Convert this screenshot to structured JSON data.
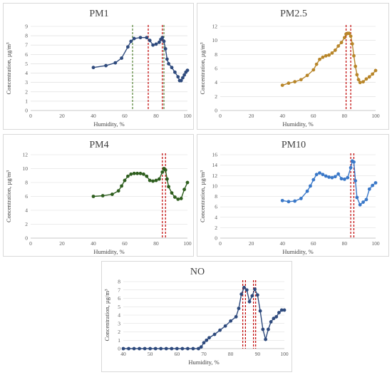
{
  "chart_data": [
    {
      "type": "scatter",
      "title": "PM1",
      "xlabel": "Humidity, %",
      "ylabel": "Concentration, µg/m³",
      "xlim": [
        0,
        100
      ],
      "ylim": [
        0,
        9
      ],
      "xticks": [
        0,
        20,
        40,
        60,
        80,
        100
      ],
      "yticks": [
        0,
        1,
        2,
        3,
        4,
        5,
        6,
        7,
        8,
        9
      ],
      "color": "#2e4a7d",
      "vlines": [
        {
          "x": 65,
          "color": "#548235"
        },
        {
          "x": 75,
          "color": "#c00000"
        },
        {
          "x": 84,
          "color": "#c00000"
        },
        {
          "x": 85,
          "color": "#548235"
        }
      ],
      "series": [
        {
          "x": [
            40,
            48,
            54,
            58,
            62,
            64,
            66,
            70,
            74,
            76,
            78,
            80,
            82,
            83,
            84,
            85,
            86,
            87,
            88,
            90,
            92,
            94,
            95,
            96,
            97,
            98,
            99,
            100
          ],
          "y": [
            4.6,
            4.8,
            5.1,
            5.6,
            6.8,
            7.4,
            7.7,
            7.8,
            7.8,
            7.5,
            7.0,
            7.1,
            7.3,
            7.6,
            7.8,
            7.4,
            6.6,
            5.5,
            5.0,
            4.6,
            4.1,
            3.6,
            3.2,
            3.2,
            3.5,
            3.8,
            4.1,
            4.3
          ]
        }
      ]
    },
    {
      "type": "scatter",
      "title": "PM2.5",
      "xlabel": "Humidity, %",
      "ylabel": "Concentration, µg/m³",
      "xlim": [
        0,
        100
      ],
      "ylim": [
        0,
        12
      ],
      "xticks": [
        0,
        20,
        40,
        60,
        80,
        100
      ],
      "yticks": [
        0,
        2,
        4,
        6,
        8,
        10,
        12
      ],
      "color": "#b8862a",
      "vlines": [
        {
          "x": 81,
          "color": "#c00000"
        },
        {
          "x": 84,
          "color": "#c00000"
        }
      ],
      "series": [
        {
          "x": [
            40,
            44,
            48,
            52,
            56,
            60,
            62,
            64,
            66,
            68,
            70,
            72,
            74,
            76,
            78,
            80,
            81,
            82,
            83,
            84,
            85,
            86,
            87,
            88,
            89,
            90,
            92,
            94,
            96,
            98,
            100
          ],
          "y": [
            3.6,
            3.9,
            4.1,
            4.4,
            5.0,
            5.8,
            6.6,
            7.3,
            7.6,
            7.8,
            7.9,
            8.2,
            8.6,
            9.2,
            9.7,
            10.4,
            10.9,
            11.0,
            11.0,
            10.6,
            9.5,
            7.8,
            6.3,
            5.1,
            4.4,
            4.0,
            4.1,
            4.5,
            4.8,
            5.2,
            5.7
          ]
        }
      ]
    },
    {
      "type": "scatter",
      "title": "PM4",
      "xlabel": "Humidity, %",
      "ylabel": "Concentration, µg/m³",
      "xlim": [
        0,
        100
      ],
      "ylim": [
        0,
        12
      ],
      "xticks": [
        0,
        20,
        40,
        60,
        80,
        100
      ],
      "yticks": [
        0,
        2,
        4,
        6,
        8,
        10,
        12
      ],
      "color": "#2e5e1e",
      "vlines": [
        {
          "x": 84,
          "color": "#c00000"
        },
        {
          "x": 86,
          "color": "#c00000"
        }
      ],
      "series": [
        {
          "x": [
            40,
            46,
            52,
            56,
            58,
            60,
            62,
            64,
            66,
            68,
            70,
            72,
            74,
            76,
            78,
            80,
            82,
            84,
            85,
            86,
            87,
            88,
            90,
            92,
            94,
            96,
            98,
            100
          ],
          "y": [
            6.0,
            6.1,
            6.3,
            6.8,
            7.5,
            8.3,
            8.9,
            9.2,
            9.3,
            9.3,
            9.3,
            9.2,
            8.9,
            8.3,
            8.2,
            8.3,
            8.5,
            9.5,
            10.0,
            9.8,
            8.5,
            7.4,
            6.5,
            5.9,
            5.6,
            5.7,
            7.0,
            8.0
          ]
        }
      ]
    },
    {
      "type": "scatter",
      "title": "PM10",
      "xlabel": "Humidity, %",
      "ylabel": "Concentration, µg/m³",
      "xlim": [
        0,
        100
      ],
      "ylim": [
        0,
        16
      ],
      "xticks": [
        0,
        20,
        40,
        60,
        80,
        100
      ],
      "yticks": [
        0,
        2,
        4,
        6,
        8,
        10,
        12,
        14,
        16
      ],
      "color": "#3a78c8",
      "vlines": [
        {
          "x": 84,
          "color": "#c00000"
        },
        {
          "x": 86,
          "color": "#c00000"
        }
      ],
      "series": [
        {
          "x": [
            40,
            44,
            48,
            52,
            56,
            58,
            60,
            62,
            64,
            66,
            68,
            70,
            72,
            74,
            76,
            78,
            80,
            82,
            84,
            85,
            86,
            87,
            88,
            90,
            92,
            94,
            96,
            98,
            100
          ],
          "y": [
            7.2,
            7.0,
            7.1,
            7.6,
            9.0,
            10.0,
            11.2,
            12.2,
            12.5,
            12.2,
            11.9,
            11.7,
            11.6,
            11.8,
            12.3,
            11.4,
            11.3,
            11.6,
            13.5,
            14.8,
            14.6,
            11.0,
            7.8,
            6.4,
            6.9,
            7.4,
            9.4,
            10.1,
            10.6
          ]
        }
      ]
    },
    {
      "type": "scatter",
      "title": "NO",
      "xlabel": "Humidity, %",
      "ylabel": "Concentration, µg/m³",
      "xlim": [
        40,
        100
      ],
      "ylim": [
        0,
        8
      ],
      "xticks": [
        40,
        50,
        60,
        70,
        80,
        90,
        100
      ],
      "yticks": [
        0,
        1,
        2,
        3,
        4,
        5,
        6,
        7,
        8
      ],
      "color": "#2e4a7d",
      "vlines": [
        {
          "x": 84.5,
          "color": "#c00000"
        },
        {
          "x": 85.5,
          "color": "#c00000"
        },
        {
          "x": 88.5,
          "color": "#c00000"
        },
        {
          "x": 89.3,
          "color": "#c00000"
        }
      ],
      "series": [
        {
          "x": [
            40,
            42,
            44,
            46,
            48,
            50,
            52,
            54,
            56,
            58,
            60,
            62,
            64,
            66,
            68,
            69,
            70,
            71,
            72,
            74,
            76,
            78,
            80,
            82,
            83,
            84,
            85,
            86,
            87,
            88,
            89,
            90,
            91,
            92,
            93,
            94,
            95,
            96,
            97,
            98,
            99,
            100
          ],
          "y": [
            0,
            0,
            0,
            0,
            0,
            0,
            0,
            0,
            0,
            0,
            0,
            0,
            0,
            0,
            0,
            0.2,
            0.7,
            1.0,
            1.3,
            1.7,
            2.2,
            2.7,
            3.3,
            3.8,
            4.8,
            6.5,
            7.3,
            7.0,
            5.6,
            6.3,
            7.1,
            6.4,
            4.5,
            2.3,
            1.1,
            2.3,
            3.2,
            3.6,
            3.8,
            4.3,
            4.6,
            4.6
          ]
        }
      ]
    }
  ]
}
